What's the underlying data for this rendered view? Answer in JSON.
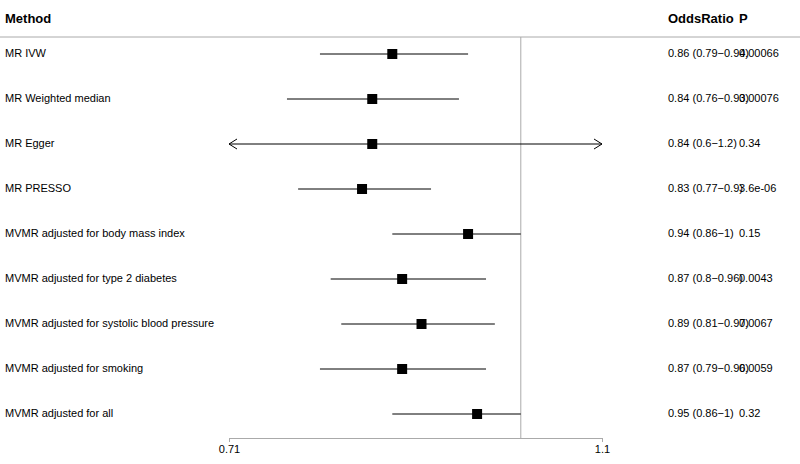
{
  "chart_data": {
    "type": "forest",
    "column_headers": [
      "Method",
      "OddsRatio",
      "P"
    ],
    "categories": [
      "MR IVW",
      "MR Weighted median",
      "MR Egger",
      "MR PRESSO",
      "MVMR adjusted for body mass index",
      "MVMR adjusted for type 2 diabetes",
      "MVMR adjusted for systolic blood pressure",
      "MVMR adjusted for smoking",
      "MVMR adjusted for all"
    ],
    "values": [
      0.86,
      0.84,
      0.84,
      0.83,
      0.94,
      0.87,
      0.89,
      0.87,
      0.95
    ],
    "lower": [
      0.79,
      0.76,
      0.6,
      0.77,
      0.86,
      0.8,
      0.81,
      0.79,
      0.86
    ],
    "upper": [
      0.94,
      0.93,
      1.2,
      0.9,
      1,
      0.96,
      0.97,
      0.96,
      1
    ],
    "value_labels": [
      "0.86 (0.79−0.94)",
      "0.84 (0.76−0.93)",
      "0.84 (0.6−1.2)",
      "0.83 (0.77−0.9)",
      "0.94 (0.86−1)",
      "0.87 (0.8−0.96)",
      "0.89 (0.81−0.97)",
      "0.87 (0.79−0.96)",
      "0.95 (0.86−1)"
    ],
    "p_labels": [
      "0.00066",
      "0.00076",
      "0.34",
      "3.6e-06",
      "0.15",
      "0.0043",
      "0.0067",
      "0.0059",
      "0.32"
    ],
    "reference_line": 1,
    "log": "x",
    "xlim": [
      0.71,
      1.1
    ],
    "xticks": [
      0.71,
      1.1
    ],
    "color": "#000000"
  }
}
